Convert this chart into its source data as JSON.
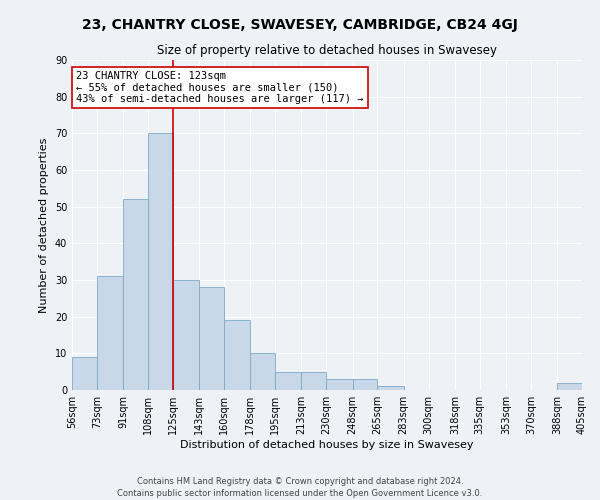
{
  "title": "23, CHANTRY CLOSE, SWAVESEY, CAMBRIDGE, CB24 4GJ",
  "subtitle": "Size of property relative to detached houses in Swavesey",
  "xlabel": "Distribution of detached houses by size in Swavesey",
  "ylabel": "Number of detached properties",
  "bar_edges": [
    56,
    73,
    91,
    108,
    125,
    143,
    160,
    178,
    195,
    213,
    230,
    248,
    265,
    283,
    300,
    318,
    335,
    353,
    370,
    388,
    405
  ],
  "bar_heights": [
    9,
    31,
    52,
    70,
    30,
    28,
    19,
    10,
    5,
    5,
    3,
    3,
    1,
    0,
    0,
    0,
    0,
    0,
    0,
    2
  ],
  "bar_color": "#c8d8e8",
  "bar_edge_color": "#7aaac8",
  "vline_x": 125,
  "vline_color": "#cc0000",
  "ylim": [
    0,
    90
  ],
  "yticks": [
    0,
    10,
    20,
    30,
    40,
    50,
    60,
    70,
    80,
    90
  ],
  "tick_labels": [
    "56sqm",
    "73sqm",
    "91sqm",
    "108sqm",
    "125sqm",
    "143sqm",
    "160sqm",
    "178sqm",
    "195sqm",
    "213sqm",
    "230sqm",
    "248sqm",
    "265sqm",
    "283sqm",
    "300sqm",
    "318sqm",
    "335sqm",
    "353sqm",
    "370sqm",
    "388sqm",
    "405sqm"
  ],
  "annotation_title": "23 CHANTRY CLOSE: 123sqm",
  "annotation_line1": "← 55% of detached houses are smaller (150)",
  "annotation_line2": "43% of semi-detached houses are larger (117) →",
  "annotation_box_color": "#ffffff",
  "annotation_box_edge_color": "#cc0000",
  "footer_line1": "Contains HM Land Registry data © Crown copyright and database right 2024.",
  "footer_line2": "Contains public sector information licensed under the Open Government Licence v3.0.",
  "bg_color": "#eef2f7",
  "grid_color": "#ffffff",
  "title_fontsize": 10,
  "subtitle_fontsize": 8.5,
  "axis_label_fontsize": 8,
  "tick_fontsize": 7,
  "footer_fontsize": 6,
  "annotation_fontsize": 7.5
}
